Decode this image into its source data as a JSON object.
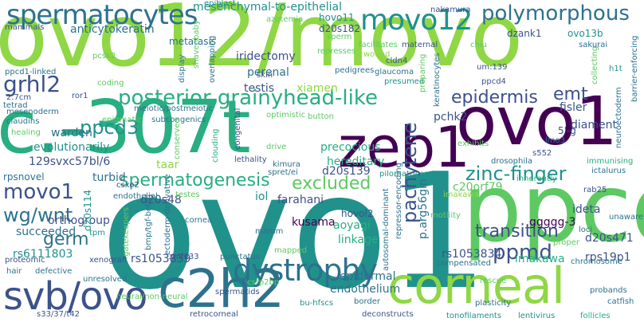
{
  "palette": {
    "background": "#ffffff",
    "c1": "#440154",
    "c2": "#3b528b",
    "c3": "#2c728e",
    "c4": "#21918c",
    "c5": "#28ae80",
    "c6": "#5ec962",
    "c7": "#8fd744",
    "c8": "#fde725"
  },
  "words": [
    {
      "text": "ovo12/movo",
      "size": 108,
      "color": "#8fd744",
      "rot": 0
    },
    {
      "text": "ovo1",
      "size": 200,
      "color": "#21918c",
      "rot": 0
    },
    {
      "text": "c.-307t",
      "size": 92,
      "color": "#28ae80",
      "rot": 0
    },
    {
      "text": "ovo1",
      "size": 84,
      "color": "#440154",
      "rot": 0
    },
    {
      "text": "zeb1",
      "size": 70,
      "color": "#440154",
      "rot": 0
    },
    {
      "text": "ppcd",
      "size": 118,
      "color": "#5ec962",
      "rot": 0
    },
    {
      "text": "corneal",
      "size": 62,
      "color": "#8fd744",
      "rot": 0
    },
    {
      "text": "c2h2",
      "size": 66,
      "color": "#2c728e",
      "rot": 0
    },
    {
      "text": "svb/ovo",
      "size": 48,
      "color": "#3b528b",
      "rot": 0
    },
    {
      "text": "dystrophy",
      "size": 38,
      "color": "#2c728e",
      "rot": 0
    },
    {
      "text": "spermatocytes",
      "size": 34,
      "color": "#2c728e",
      "rot": 0
    },
    {
      "text": "movo12",
      "size": 36,
      "color": "#21918c",
      "rot": 0
    },
    {
      "text": "polymorphous",
      "size": 26,
      "color": "#2c728e",
      "rot": 0
    },
    {
      "text": "posterior grainyhead-like",
      "size": 26,
      "color": "#28ae80",
      "rot": 0
    },
    {
      "text": "grhl2",
      "size": 28,
      "color": "#3b528b",
      "rot": 0
    },
    {
      "text": "epidermis",
      "size": 22,
      "color": "#3b528b",
      "rot": 0
    },
    {
      "text": "emt",
      "size": 22,
      "color": "#3b528b",
      "rot": 0
    },
    {
      "text": "ppcd3",
      "size": 24,
      "color": "#21918c",
      "rot": 0
    },
    {
      "text": "zinc-finger",
      "size": 24,
      "color": "#21918c",
      "rot": 0
    },
    {
      "text": "spermatogenesis",
      "size": 22,
      "color": "#28ae80",
      "rot": 0
    },
    {
      "text": "excluded",
      "size": 22,
      "color": "#5ec962",
      "rot": 0
    },
    {
      "text": "movo1",
      "size": 26,
      "color": "#3b528b",
      "rot": 0
    },
    {
      "text": "wg/wnt",
      "size": 24,
      "color": "#2c728e",
      "rot": 0
    },
    {
      "text": "germ",
      "size": 22,
      "color": "#2c728e",
      "rot": 0
    },
    {
      "text": "pachytene",
      "size": 24,
      "color": "#3b528b",
      "rot": -90
    },
    {
      "text": "transition",
      "size": 22,
      "color": "#3b528b",
      "rot": 0
    },
    {
      "text": "ppmd",
      "size": 26,
      "color": "#3b528b",
      "rot": 0
    },
    {
      "text": "endothelium",
      "size": 14,
      "color": "#2c728e",
      "rot": 0
    },
    {
      "text": "epidermal",
      "size": 14,
      "color": "#2c728e",
      "rot": 0
    },
    {
      "text": "mesenchymal-to-epithelial",
      "size": 14,
      "color": "#21918c",
      "rot": 0
    },
    {
      "text": "anticytokeratin",
      "size": 14,
      "color": "#2c728e",
      "rot": 0
    },
    {
      "text": "metatasis",
      "size": 12,
      "color": "#2c728e",
      "rot": 0
    },
    {
      "text": "iridectomy",
      "size": 14,
      "color": "#3b528b",
      "rot": 0
    },
    {
      "text": "perenal",
      "size": 14,
      "color": "#2c728e",
      "rot": 0
    },
    {
      "text": "testis",
      "size": 14,
      "color": "#3b528b",
      "rot": 0
    },
    {
      "text": "d20s182",
      "size": 12,
      "color": "#3b528b",
      "rot": 0
    },
    {
      "text": "hovo11",
      "size": 12,
      "color": "#21918c",
      "rot": 0
    },
    {
      "text": "dzank1",
      "size": 12,
      "color": "#3b528b",
      "rot": 0
    },
    {
      "text": "ovo13b",
      "size": 12,
      "color": "#21918c",
      "rot": 0
    },
    {
      "text": "evolutionarily",
      "size": 14,
      "color": "#21918c",
      "rot": 0
    },
    {
      "text": "129svxc57bl/6",
      "size": 14,
      "color": "#3b528b",
      "rot": 0
    },
    {
      "text": "precocious",
      "size": 14,
      "color": "#28ae80",
      "rot": 0
    },
    {
      "text": "hereditary",
      "size": 14,
      "color": "#28ae80",
      "rot": 0
    },
    {
      "text": "warden",
      "size": 14,
      "color": "#2c728e",
      "rot": 0
    },
    {
      "text": "turbid",
      "size": 14,
      "color": "#2c728e",
      "rot": 0
    },
    {
      "text": "taar",
      "size": 14,
      "color": "#8fd744",
      "rot": 0
    },
    {
      "text": "d20s139",
      "size": 14,
      "color": "#3b528b",
      "rot": 0
    },
    {
      "text": "rpsnovel",
      "size": 12,
      "color": "#2c728e",
      "rot": 0
    },
    {
      "text": "farahani",
      "size": 14,
      "color": "#3b528b",
      "rot": 0
    },
    {
      "text": "hovol2",
      "size": 12,
      "color": "#3b528b",
      "rot": 0
    },
    {
      "text": "kusama",
      "size": 14,
      "color": "#440154",
      "rot": 0
    },
    {
      "text": "aoyagi",
      "size": 14,
      "color": "#28ae80",
      "rot": 0
    },
    {
      "text": "d20s48",
      "size": 14,
      "color": "#3b528b",
      "rot": 0
    },
    {
      "text": "orthogroup",
      "size": 14,
      "color": "#3b528b",
      "rot": 0
    },
    {
      "text": "succeeded",
      "size": 14,
      "color": "#2c728e",
      "rot": 0
    },
    {
      "text": "d20s114",
      "size": 12,
      "color": "#21918c",
      "rot": -90
    },
    {
      "text": "rs6111803",
      "size": 14,
      "color": "#21918c",
      "rot": 0
    },
    {
      "text": "rs1053839",
      "size": 14,
      "color": "#3b528b",
      "rot": 0
    },
    {
      "text": "linkage",
      "size": 14,
      "color": "#28ae80",
      "rot": 0
    },
    {
      "text": "rs1053834",
      "size": 14,
      "color": "#3b528b",
      "rot": 0
    },
    {
      "text": "imakawa",
      "size": 14,
      "color": "#28ae80",
      "rot": 0
    },
    {
      "text": "ideta",
      "size": 14,
      "color": "#3b528b",
      "rot": 0
    },
    {
      "text": "ggggg-3",
      "size": 14,
      "color": "#440154",
      "rot": 0
    },
    {
      "text": "d20s471",
      "size": 14,
      "color": "#3b528b",
      "rot": 0
    },
    {
      "text": "rps19p1",
      "size": 14,
      "color": "#3b528b",
      "rot": 0
    },
    {
      "text": "c20orf79",
      "size": 14,
      "color": "#5ec962",
      "rot": 0
    },
    {
      "text": "p.arg56gln",
      "size": 14,
      "color": "#2c728e",
      "rot": -90
    },
    {
      "text": "pchk2",
      "size": 14,
      "color": "#3b528b",
      "rot": 0
    },
    {
      "text": "fisler",
      "size": 14,
      "color": "#3b528b",
      "rot": 0
    },
    {
      "text": "diament",
      "size": 14,
      "color": "#3b528b",
      "rot": 0
    },
    {
      "text": "iol",
      "size": 14,
      "color": "#21918c",
      "rot": 0
    },
    {
      "text": "xiamen",
      "size": 14,
      "color": "#8fd744",
      "rot": 0
    },
    {
      "text": "cornea",
      "size": 10,
      "color": "#2c728e",
      "rot": 0
    },
    {
      "text": "tpm",
      "size": 10,
      "color": "#21918c",
      "rot": 0
    },
    {
      "text": "hair",
      "size": 10,
      "color": "#2c728e",
      "rot": 0
    },
    {
      "text": "proteomic",
      "size": 10,
      "color": "#3b528b",
      "rot": 0
    },
    {
      "text": "xenograft",
      "size": 10,
      "color": "#3b528b",
      "rot": 0
    },
    {
      "text": "unresolved",
      "size": 10,
      "color": "#2c728e",
      "rot": 0
    },
    {
      "text": "neural/non-neural",
      "size": 10,
      "color": "#5ec962",
      "rot": 0
    },
    {
      "text": "s33/37/t42",
      "size": 10,
      "color": "#3b528b",
      "rot": 0
    },
    {
      "text": "retrocorneal",
      "size": 10,
      "color": "#3b528b",
      "rot": 0
    },
    {
      "text": "bu-hfscs",
      "size": 10,
      "color": "#21918c",
      "rot": 0
    },
    {
      "text": "deconstructs",
      "size": 10,
      "color": "#3b528b",
      "rot": 0
    },
    {
      "text": "tonofilaments",
      "size": 10,
      "color": "#21918c",
      "rot": 0
    },
    {
      "text": "lentivirus",
      "size": 10,
      "color": "#21918c",
      "rot": 0
    },
    {
      "text": "follicles",
      "size": 10,
      "color": "#28ae80",
      "rot": 0
    },
    {
      "text": "probands",
      "size": 10,
      "color": "#2c728e",
      "rot": 0
    },
    {
      "text": "catfish",
      "size": 10,
      "color": "#2c728e",
      "rot": 0
    },
    {
      "text": "imakawa",
      "size": 10,
      "color": "#8fd744",
      "rot": 0
    },
    {
      "text": "sperm",
      "size": 10,
      "color": "#5ec962",
      "rot": 0
    },
    {
      "text": "wound",
      "size": 10,
      "color": "#8fd744",
      "rot": 0
    },
    {
      "text": "glaucoma",
      "size": 10,
      "color": "#2c728e",
      "rot": 0
    },
    {
      "text": "pedigrees",
      "size": 10,
      "color": "#2c728e",
      "rot": 0
    },
    {
      "text": "presumed",
      "size": 10,
      "color": "#21918c",
      "rot": 0
    },
    {
      "text": "cldn4",
      "size": 10,
      "color": "#3b528b",
      "rot": 0
    },
    {
      "text": "um:139",
      "size": 10,
      "color": "#3b528b",
      "rot": 0
    },
    {
      "text": "h1t",
      "size": 10,
      "color": "#21918c",
      "rot": 0
    },
    {
      "text": "collecting",
      "size": 10,
      "color": "#5ec962",
      "rot": -90
    },
    {
      "text": "barrier-enforcing",
      "size": 10,
      "color": "#2c728e",
      "rot": -90
    },
    {
      "text": "nakamura",
      "size": 10,
      "color": "#3b528b",
      "rot": 0
    },
    {
      "text": "chiu",
      "size": 10,
      "color": "#5ec962",
      "rot": 0
    },
    {
      "text": "sakurai",
      "size": 10,
      "color": "#2c728e",
      "rot": 0
    },
    {
      "text": "facilitates",
      "size": 10,
      "color": "#5ec962",
      "rot": 0
    },
    {
      "text": "maternal",
      "size": 10,
      "color": "#3b528b",
      "rot": 0
    },
    {
      "text": "azotemia",
      "size": 10,
      "color": "#5ec962",
      "rot": 0
    },
    {
      "text": "epiblast",
      "size": 10,
      "color": "#21918c",
      "rot": 0
    },
    {
      "text": "mammals",
      "size": 10,
      "color": "#3b528b",
      "rot": 0
    },
    {
      "text": "pcsk2",
      "size": 10,
      "color": "#5ec962",
      "rot": 0
    },
    {
      "text": "ppcd1-linked",
      "size": 10,
      "color": "#2c728e",
      "rot": 0
    },
    {
      "text": "2.7cm",
      "size": 10,
      "color": "#3b528b",
      "rot": 0
    },
    {
      "text": "mesenoderm",
      "size": 10,
      "color": "#2c728e",
      "rot": 0
    },
    {
      "text": "claudins",
      "size": 10,
      "color": "#2c728e",
      "rot": 0
    },
    {
      "text": "tetrad",
      "size": 10,
      "color": "#2c728e",
      "rot": 0
    },
    {
      "text": "healing",
      "size": 10,
      "color": "#5ec962",
      "rot": 0
    },
    {
      "text": "ror1",
      "size": 10,
      "color": "#3b528b",
      "rot": 0
    },
    {
      "text": "coding",
      "size": 10,
      "color": "#5ec962",
      "rot": 0
    },
    {
      "text": "meiotic/postmeiotic",
      "size": 10,
      "color": "#2c728e",
      "rot": 0
    },
    {
      "text": "enigmatic",
      "size": 10,
      "color": "#5ec962",
      "rot": 0
    },
    {
      "text": "subcongenics",
      "size": 10,
      "color": "#2c728e",
      "rot": 0
    },
    {
      "text": "optimistic",
      "size": 10,
      "color": "#5ec962",
      "rot": 0
    },
    {
      "text": "button",
      "size": 10,
      "color": "#5ec962",
      "rot": 0
    },
    {
      "text": "drive",
      "size": 10,
      "color": "#5ec962",
      "rot": 0
    },
    {
      "text": "kimura",
      "size": 10,
      "color": "#2c728e",
      "rot": 0
    },
    {
      "text": "spret/ei",
      "size": 10,
      "color": "#2c728e",
      "rot": 0
    },
    {
      "text": "pilomatricoma",
      "size": 10,
      "color": "#21918c",
      "rot": 0
    },
    {
      "text": "drosophila",
      "size": 10,
      "color": "#2c728e",
      "rot": 0
    },
    {
      "text": "s552",
      "size": 10,
      "color": "#3b528b",
      "rot": 0
    },
    {
      "text": "immunising",
      "size": 10,
      "color": "#28ae80",
      "rot": 0
    },
    {
      "text": "ictalurus",
      "size": 10,
      "color": "#2c728e",
      "rot": 0
    },
    {
      "text": "rab25",
      "size": 10,
      "color": "#3b528b",
      "rot": 0
    },
    {
      "text": "5'-g",
      "size": 12,
      "color": "#3b528b",
      "rot": 0
    },
    {
      "text": "lmo3",
      "size": 10,
      "color": "#2c728e",
      "rot": 0
    },
    {
      "text": "neuroectoderm",
      "size": 10,
      "color": "#2c728e",
      "rot": -90
    },
    {
      "text": "exhibits",
      "size": 10,
      "color": "#5ec962",
      "rot": 0
    },
    {
      "text": "inherently",
      "size": 10,
      "color": "#28ae80",
      "rot": 0
    },
    {
      "text": "csxo2",
      "size": 10,
      "color": "#3b528b",
      "rot": 0
    },
    {
      "text": "conserved",
      "size": 10,
      "color": "#5ec962",
      "rot": -90
    },
    {
      "text": "clouding",
      "size": 10,
      "color": "#28ae80",
      "rot": -90
    },
    {
      "text": "congenital",
      "size": 10,
      "color": "#3b528b",
      "rot": -90
    },
    {
      "text": "lethality",
      "size": 10,
      "color": "#3b528b",
      "rot": 0
    },
    {
      "text": "ectoderm-derivative",
      "size": 10,
      "color": "#2c728e",
      "rot": -90
    },
    {
      "text": "endothelial",
      "size": 10,
      "color": "#2c728e",
      "rot": 0
    },
    {
      "text": "testes",
      "size": 10,
      "color": "#5ec962",
      "rot": 0
    },
    {
      "text": "repressor-encoding",
      "size": 10,
      "color": "#2c728e",
      "rot": -90
    },
    {
      "text": "autosomal-dominant",
      "size": 10,
      "color": "#2c728e",
      "rot": -90
    },
    {
      "text": "motility",
      "size": 10,
      "color": "#5ec962",
      "rot": 0
    },
    {
      "text": "compensated",
      "size": 10,
      "color": "#2c728e",
      "rot": 0
    },
    {
      "text": "defective",
      "size": 10,
      "color": "#2c728e",
      "rot": 0
    },
    {
      "text": "gatekeepers",
      "size": 10,
      "color": "#5ec962",
      "rot": -90
    },
    {
      "text": "bmp/tgf-beta",
      "size": 10,
      "color": "#2c728e",
      "rot": -90
    },
    {
      "text": "zmf133",
      "size": 10,
      "color": "#3b528b",
      "rot": 0
    },
    {
      "text": "punctatus",
      "size": 10,
      "color": "#2c728e",
      "rot": 0
    },
    {
      "text": "mapped",
      "size": 10,
      "color": "#5ec962",
      "rot": 0
    },
    {
      "text": "spermatids",
      "size": 10,
      "color": "#3b528b",
      "rot": 0
    },
    {
      "text": "csrp2bp",
      "size": 10,
      "color": "#5ec962",
      "rot": 0
    },
    {
      "text": "mamm",
      "size": 10,
      "color": "#2c728e",
      "rot": 0
    },
    {
      "text": "border",
      "size": 10,
      "color": "#2c728e",
      "rot": 0
    },
    {
      "text": "rescue",
      "size": 10,
      "color": "#5ec962",
      "rot": 0
    },
    {
      "text": "plasticity",
      "size": 10,
      "color": "#2c728e",
      "rot": 0
    },
    {
      "text": "chromosome",
      "size": 10,
      "color": "#2c728e",
      "rot": 0
    },
    {
      "text": "proper",
      "size": 10,
      "color": "#5ec962",
      "rot": 0
    },
    {
      "text": "unaware",
      "size": 10,
      "color": "#2c728e",
      "rot": 0
    },
    {
      "text": "loci",
      "size": 10,
      "color": "#2c728e",
      "rot": 0
    },
    {
      "text": "shavenbaby",
      "size": 10,
      "color": "#5ec962",
      "rot": -90
    },
    {
      "text": "display",
      "size": 10,
      "color": "#2c728e",
      "rot": -90
    },
    {
      "text": "overlapping",
      "size": 10,
      "color": "#2c728e",
      "rot": -90
    },
    {
      "text": "skin",
      "size": 10,
      "color": "#3b528b",
      "rot": 0
    },
    {
      "text": "preparing",
      "size": 10,
      "color": "#5ec962",
      "rot": -90
    },
    {
      "text": "keratinocytes",
      "size": 10,
      "color": "#2c728e",
      "rot": -90
    },
    {
      "text": "represses",
      "size": 10,
      "color": "#5ec962",
      "rot": 0
    },
    {
      "text": "ppcd4",
      "size": 10,
      "color": "#3b528b",
      "rot": 0
    }
  ]
}
